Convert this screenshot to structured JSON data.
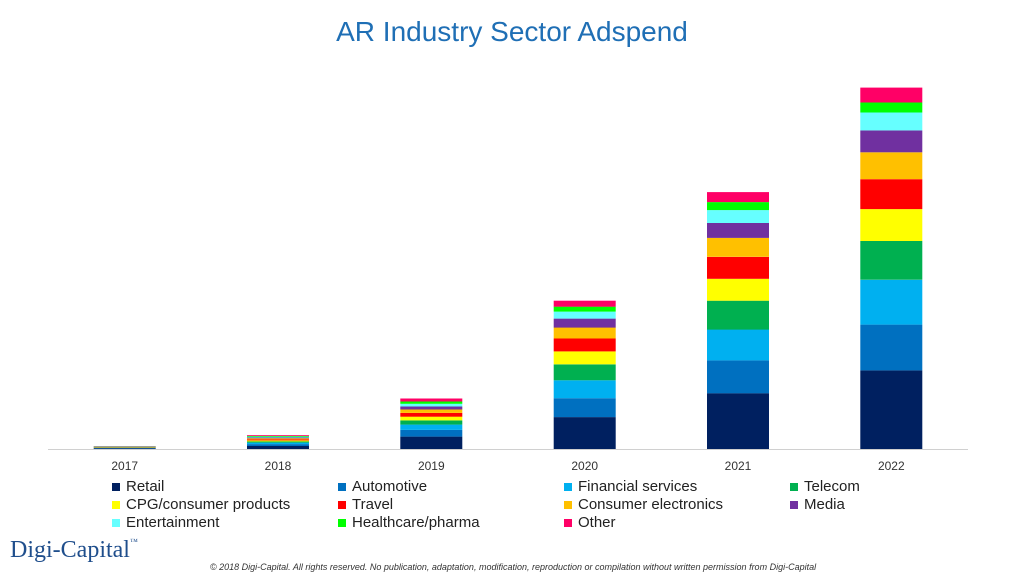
{
  "chart_data": {
    "type": "bar",
    "stacked": true,
    "title": "AR Industry Sector Adspend",
    "categories": [
      "2017",
      "2018",
      "2019",
      "2020",
      "2021",
      "2022"
    ],
    "yaxis": "none",
    "grid": false,
    "legend_position": "bottom",
    "series": [
      {
        "name": "Retail",
        "color": "#002060",
        "values": [
          0.6,
          3.0,
          12.5,
          32,
          56,
          79
        ]
      },
      {
        "name": "Automotive",
        "color": "#0070c0",
        "values": [
          0.4,
          1.9,
          6.7,
          19,
          33,
          46
        ]
      },
      {
        "name": "Financial services",
        "color": "#00b0f0",
        "values": [
          0.3,
          1.5,
          5.3,
          18,
          31,
          45
        ]
      },
      {
        "name": "Telecom",
        "color": "#00b050",
        "values": [
          0.2,
          1.1,
          4.2,
          16,
          29,
          39
        ]
      },
      {
        "name": "CPG/consumer products",
        "color": "#ffff00",
        "values": [
          0.2,
          1.1,
          3.8,
          13,
          22,
          32
        ]
      },
      {
        "name": "Travel",
        "color": "#ff0000",
        "values": [
          0.2,
          1.1,
          3.8,
          13,
          22,
          30
        ]
      },
      {
        "name": "Consumer electronics",
        "color": "#ffc000",
        "values": [
          0.2,
          1.1,
          3.4,
          11,
          19,
          27
        ]
      },
      {
        "name": "Media",
        "color": "#7030a0",
        "values": [
          0.2,
          0.8,
          3.0,
          9,
          15,
          22
        ]
      },
      {
        "name": "Entertainment",
        "color": "#66ffff",
        "values": [
          0.2,
          0.8,
          2.7,
          7,
          13,
          18
        ]
      },
      {
        "name": "Healthcare/pharma",
        "color": "#00ff00",
        "values": [
          0.2,
          0.8,
          2.3,
          5,
          8,
          10
        ]
      },
      {
        "name": "Other",
        "color": "#ff0066",
        "values": [
          0.2,
          0.8,
          3.0,
          6,
          10,
          15
        ]
      }
    ]
  },
  "logo": {
    "name": "Digi-Capital",
    "tm": "™"
  },
  "footer": "© 2018 Digi-Capital. All rights reserved. No publication, adaptation, modification, reproduction or compilation without written permission from Digi-Capital"
}
